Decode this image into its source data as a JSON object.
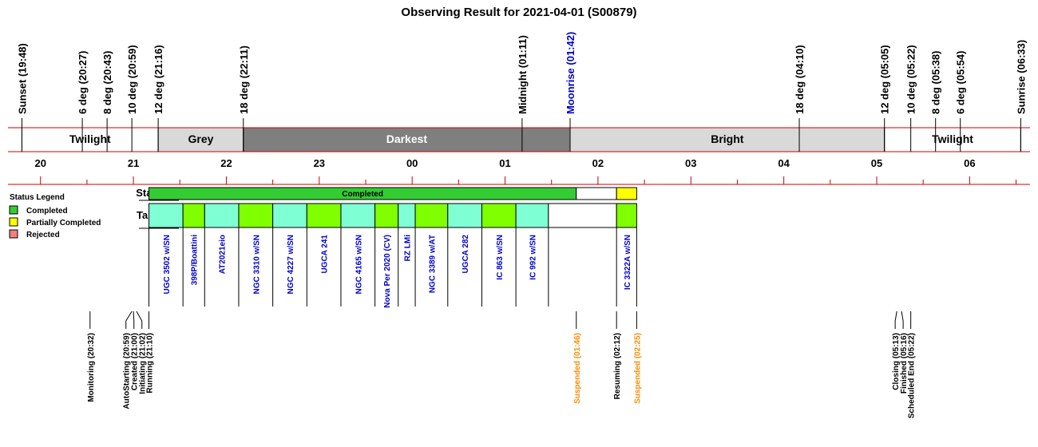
{
  "title": "Observing Result for 2021-04-01 (S00879)",
  "chart_data": {
    "type": "timeline",
    "time_axis": {
      "start": "19:39",
      "end": "06:39",
      "hour_labels": [
        "20",
        "21",
        "22",
        "23",
        "00",
        "01",
        "02",
        "03",
        "04",
        "05",
        "06"
      ]
    },
    "events_top": [
      {
        "label": "Sunset (19:48)",
        "time": "19:48",
        "color": "#000000"
      },
      {
        "label": "6 deg (20:27)",
        "time": "20:27",
        "color": "#000000"
      },
      {
        "label": "8 deg (20:43)",
        "time": "20:43",
        "color": "#000000"
      },
      {
        "label": "10 deg (20:59)",
        "time": "20:59",
        "color": "#000000"
      },
      {
        "label": "12 deg (21:16)",
        "time": "21:16",
        "color": "#000000"
      },
      {
        "label": "18 deg (22:11)",
        "time": "22:11",
        "color": "#000000"
      },
      {
        "label": "Midnight (01:11)",
        "time": "01:11",
        "color": "#000000"
      },
      {
        "label": "Moonrise (01:42)",
        "time": "01:42",
        "color": "#0000cc"
      },
      {
        "label": "18 deg (04:10)",
        "time": "04:10",
        "color": "#000000"
      },
      {
        "label": "12 deg (05:05)",
        "time": "05:05",
        "color": "#000000"
      },
      {
        "label": "10 deg (05:22)",
        "time": "05:22",
        "color": "#000000"
      },
      {
        "label": "8 deg (05:38)",
        "time": "05:38",
        "color": "#000000"
      },
      {
        "label": "6 deg (05:54)",
        "time": "05:54",
        "color": "#000000"
      },
      {
        "label": "Sunrise (06:33)",
        "time": "06:33",
        "color": "#000000"
      }
    ],
    "sky_bands": [
      {
        "label": "Twilight",
        "start": "19:48",
        "end": "21:16",
        "color": "#ffffff",
        "text_color": "#000000"
      },
      {
        "label": "Grey",
        "start": "21:16",
        "end": "22:11",
        "color": "#d9d9d9",
        "text_color": "#000000"
      },
      {
        "label": "Darkest",
        "start": "22:11",
        "end": "01:42",
        "color": "#7f7f7f",
        "text_color": "#ffffff"
      },
      {
        "label": "Bright",
        "start": "01:42",
        "end": "05:05",
        "color": "#d9d9d9",
        "text_color": "#000000"
      },
      {
        "label": "Twilight",
        "start": "05:05",
        "end": "06:33",
        "color": "#ffffff",
        "text_color": "#000000"
      }
    ],
    "status_row": {
      "label": "Status",
      "segments": [
        {
          "label": "Completed",
          "start": "21:10",
          "end": "01:46",
          "color": "#33cc33"
        },
        {
          "label": "",
          "start": "01:46",
          "end": "02:12",
          "color": "#ffffff"
        },
        {
          "label": "",
          "start": "02:12",
          "end": "02:25",
          "color": "#ffff00"
        }
      ]
    },
    "targets_row": {
      "label": "Targets",
      "targets": [
        {
          "name": "UGC 3502 w/SN",
          "start": "21:10",
          "end": "21:32",
          "color": "#7fffd4"
        },
        {
          "name": "398P/Boattini",
          "start": "21:32",
          "end": "21:46",
          "color": "#7fff00"
        },
        {
          "name": "AT2021eio",
          "start": "21:46",
          "end": "22:08",
          "color": "#7fffd4"
        },
        {
          "name": "NGC 3310 w/SN",
          "start": "22:08",
          "end": "22:30",
          "color": "#7fff00"
        },
        {
          "name": "NGC 4227 w/SN",
          "start": "22:30",
          "end": "22:52",
          "color": "#7fffd4"
        },
        {
          "name": "UGCA 241",
          "start": "22:52",
          "end": "23:14",
          "color": "#7fff00"
        },
        {
          "name": "NGC 4165 w/SN",
          "start": "23:14",
          "end": "23:36",
          "color": "#7fffd4"
        },
        {
          "name": "Nova Per 2020 (CV)",
          "start": "23:36",
          "end": "23:51",
          "color": "#7fff00"
        },
        {
          "name": "RZ LMi",
          "start": "23:51",
          "end": "00:02",
          "color": "#7fffd4"
        },
        {
          "name": "NGC 3389 w/AT",
          "start": "00:02",
          "end": "00:23",
          "color": "#7fff00"
        },
        {
          "name": "UGCA 282",
          "start": "00:23",
          "end": "00:45",
          "color": "#7fffd4"
        },
        {
          "name": "IC 863 w/SN",
          "start": "00:45",
          "end": "01:07",
          "color": "#7fff00"
        },
        {
          "name": "IC 992 w/SN",
          "start": "01:07",
          "end": "01:28",
          "color": "#7fffd4"
        },
        {
          "name": "",
          "start": "01:28",
          "end": "02:12",
          "color": "#ffffff"
        },
        {
          "name": "IC 3322A w/SN",
          "start": "02:12",
          "end": "02:25",
          "color": "#7fff00"
        }
      ]
    },
    "events_bottom": [
      {
        "label": "Monitoring (20:32)",
        "time": "20:32",
        "color": "#000000"
      },
      {
        "label": "AutoStarting (20:59)",
        "time": "20:59",
        "color": "#000000"
      },
      {
        "label": "Created (21:00)",
        "time": "21:00",
        "color": "#000000"
      },
      {
        "label": "Initiating (21:02)",
        "time": "21:02",
        "color": "#000000"
      },
      {
        "label": "Running (21:10)",
        "time": "21:10",
        "color": "#000000"
      },
      {
        "label": "Suspended (01:46)",
        "time": "01:46",
        "color": "#ff8c00"
      },
      {
        "label": "Resuming (02:12)",
        "time": "02:12",
        "color": "#000000"
      },
      {
        "label": "Suspended (02:25)",
        "time": "02:25",
        "color": "#ff8c00"
      },
      {
        "label": "Closing (05:13)",
        "time": "05:13",
        "color": "#000000"
      },
      {
        "label": "Finished (05:16)",
        "time": "05:16",
        "color": "#000000"
      },
      {
        "label": "Scheduled End (05:22)",
        "time": "05:22",
        "color": "#000000"
      }
    ],
    "legend": {
      "title": "Status Legend",
      "items": [
        {
          "label": "Completed",
          "color": "#33cc33"
        },
        {
          "label": "Partially Completed",
          "color": "#ffff00"
        },
        {
          "label": "Rejected",
          "color": "#f08080"
        }
      ]
    }
  }
}
